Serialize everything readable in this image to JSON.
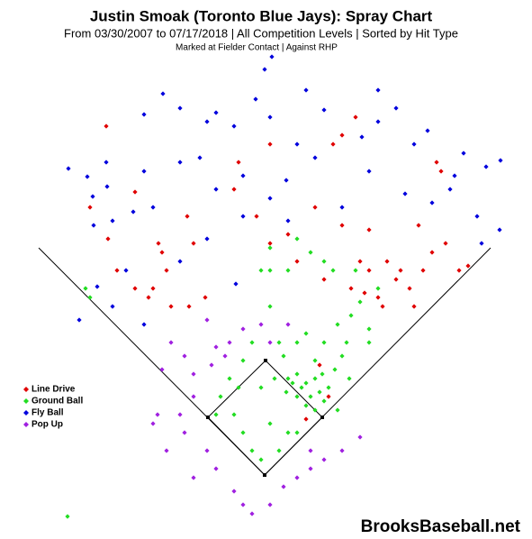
{
  "chart_data": {
    "type": "scatter",
    "title": "Justin Smoak (Toronto Blue Jays): Spray Chart",
    "subtitle": "From 03/30/2007 to 07/17/2018 | All Competition Levels | Sorted by Hit Type",
    "note": "Marked at Fielder Contact |   Against RHP",
    "watermark": "BrooksBaseball.net",
    "xlim": [
      -294,
      297
    ],
    "ylim": [
      -71,
      527
    ],
    "legend": "lower-left",
    "series": [
      {
        "name": "Line Drive",
        "color": "#e00000",
        "x": [
          -176,
          -144,
          -118,
          -109,
          -124,
          -86,
          -79,
          -104,
          -84,
          -66,
          -34,
          -9,
          6,
          26,
          56,
          86,
          106,
          116,
          126,
          146,
          161,
          176,
          186,
          201,
          216,
          226,
          196,
          191,
          171,
          116,
          86,
          101,
          76,
          -29,
          6,
          36,
          66,
          96,
          136,
          151,
          -144,
          -129,
          -164,
          -174,
          -114,
          -194,
          111,
          131,
          166,
          61,
          71,
          46
        ],
        "y": [
          387,
          314,
          257,
          227,
          207,
          287,
          257,
          187,
          187,
          197,
          317,
          287,
          257,
          267,
          297,
          277,
          237,
          227,
          197,
          217,
          207,
          227,
          247,
          257,
          227,
          232,
          337,
          347,
          277,
          272,
          377,
          397,
          367,
          347,
          367,
          237,
          217,
          207,
          237,
          227,
          207,
          197,
          227,
          262,
          247,
          297,
          202,
          187,
          187,
          122,
          87,
          62
        ]
      },
      {
        "name": "Ground Ball",
        "color": "#22dd22",
        "x": [
          26,
          36,
          41,
          46,
          51,
          56,
          61,
          66,
          71,
          46,
          36,
          56,
          31,
          24,
          64,
          78,
          86,
          91,
          81,
          96,
          106,
          116,
          126,
          101,
          76,
          66,
          51,
          36,
          6,
          -4,
          26,
          6,
          -14,
          -24,
          -39,
          -49,
          -54,
          -34,
          -24,
          6,
          16,
          26,
          -14,
          -4,
          36,
          11,
          -4,
          -29,
          56,
          66,
          36,
          21,
          -199,
          -219,
          -194,
          6,
          16,
          46,
          81,
          94,
          116
        ],
        "y": [
          107,
          112,
          97,
          102,
          87,
          107,
          92,
          82,
          97,
          77,
          87,
          72,
          102,
          92,
          112,
          117,
          132,
          147,
          167,
          177,
          192,
          162,
          207,
          227,
          227,
          237,
          247,
          262,
          252,
          227,
          227,
          187,
          147,
          127,
          107,
          87,
          67,
          67,
          47,
          57,
          27,
          47,
          27,
          17,
          47,
          107,
          97,
          97,
          127,
          147,
          147,
          132,
          207,
          -46,
          197,
          227,
          147,
          157,
          72,
          107,
          147
        ]
      },
      {
        "name": "Fly Ball",
        "color": "#0000dd",
        "x": [
          0,
          8,
          -113,
          -134,
          -218,
          -197,
          -176,
          -175,
          -191,
          -146,
          -190,
          -169,
          -134,
          -94,
          -72,
          -54,
          -34,
          -10,
          6,
          36,
          46,
          66,
          108,
          126,
          146,
          166,
          181,
          206,
          221,
          246,
          262,
          236,
          261,
          241,
          -186,
          -169,
          -206,
          -124,
          -54,
          -24,
          6,
          26,
          86,
          156,
          116,
          -64,
          -154,
          -134,
          -94,
          -32,
          24,
          56,
          -94,
          -64,
          -24,
          126,
          211,
          186
        ],
        "y": [
          450,
          464,
          423,
          400,
          340,
          331,
          347,
          320,
          309,
          292,
          277,
          282,
          337,
          347,
          352,
          402,
          387,
          417,
          397,
          367,
          427,
          405,
          375,
          392,
          407,
          367,
          382,
          317,
          357,
          342,
          349,
          287,
          272,
          257,
          209,
          187,
          172,
          297,
          317,
          287,
          307,
          282,
          297,
          312,
          337,
          262,
          227,
          167,
          237,
          212,
          327,
          352,
          407,
          392,
          332,
          427,
          332,
          302
        ]
      },
      {
        "name": "Pop Up",
        "color": "#a020e0",
        "x": [
          -104,
          -114,
          -89,
          -79,
          -59,
          -54,
          -44,
          -64,
          -24,
          -4,
          -119,
          -94,
          -124,
          -109,
          -89,
          -64,
          -79,
          -54,
          -34,
          -24,
          -14,
          6,
          21,
          36,
          51,
          66,
          86,
          106,
          -79,
          -39,
          6,
          26,
          51
        ],
        "y": [
          147,
          117,
          132,
          112,
          122,
          142,
          132,
          172,
          162,
          167,
          67,
          67,
          57,
          27,
          47,
          27,
          -3,
          7,
          -18,
          -33,
          -43,
          -33,
          -13,
          -3,
          7,
          17,
          27,
          42,
          87,
          147,
          147,
          167,
          27
        ]
      }
    ]
  }
}
